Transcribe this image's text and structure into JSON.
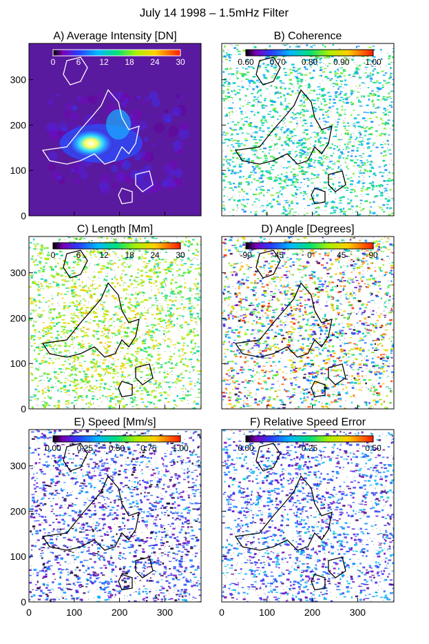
{
  "figure": {
    "title": "July 14 1998 – 1.5mHz Filter"
  },
  "chart_data": [
    {
      "type": "heatmap",
      "title": "A) Average Intensity [DN]",
      "colorbar": {
        "colormap": "rainbow",
        "ticks": [
          "0",
          "6",
          "12",
          "18",
          "24",
          "30"
        ],
        "range": [
          0,
          30
        ],
        "placement": "top"
      },
      "background": "#5a1aa0",
      "x_ticks": [],
      "y_ticks": [
        "0",
        "100",
        "200",
        "300"
      ],
      "xlim": [
        0,
        380
      ],
      "ylim": [
        0,
        380
      ]
    },
    {
      "type": "heatmap",
      "title": "B) Coherence",
      "colorbar": {
        "colormap": "rainbow",
        "ticks": [
          "0.60",
          "0.70",
          "0.80",
          "0.90",
          "1.00"
        ],
        "range": [
          0.6,
          1.0
        ],
        "placement": "top"
      },
      "background": "#ffffff",
      "x_ticks": [],
      "y_ticks": [],
      "xlim": [
        0,
        380
      ],
      "ylim": [
        0,
        380
      ]
    },
    {
      "type": "heatmap",
      "title": "C) Length [Mm]",
      "colorbar": {
        "colormap": "rainbow",
        "ticks": [
          "0",
          "6",
          "12",
          "18",
          "24",
          "30"
        ],
        "range": [
          0,
          30
        ],
        "placement": "top"
      },
      "background": "#ffffff",
      "x_ticks": [],
      "y_ticks": [
        "0",
        "100",
        "200",
        "300"
      ],
      "xlim": [
        0,
        380
      ],
      "ylim": [
        0,
        380
      ]
    },
    {
      "type": "heatmap",
      "title": "D) Angle [Degrees]",
      "colorbar": {
        "colormap": "rainbow",
        "ticks": [
          "-90",
          "-45",
          "0",
          "45",
          "90"
        ],
        "range": [
          -90,
          90
        ],
        "placement": "top"
      },
      "background": "#ffffff",
      "x_ticks": [],
      "y_ticks": [],
      "xlim": [
        0,
        380
      ],
      "ylim": [
        0,
        380
      ]
    },
    {
      "type": "heatmap",
      "title": "E) Speed [Mm/s]",
      "colorbar": {
        "colormap": "rainbow",
        "ticks": [
          "0.00",
          "0.25",
          "0.50",
          "0.75",
          "1.00"
        ],
        "range": [
          0,
          1
        ],
        "placement": "top"
      },
      "background": "#ffffff",
      "x_ticks": [
        "0",
        "100",
        "200",
        "300"
      ],
      "y_ticks": [
        "0",
        "100",
        "200",
        "300"
      ],
      "xlim": [
        0,
        380
      ],
      "ylim": [
        0,
        380
      ]
    },
    {
      "type": "heatmap",
      "title": "F) Relative Speed Error",
      "colorbar": {
        "colormap": "rainbow",
        "ticks": [
          "0.00",
          "0.25",
          "0.50"
        ],
        "range": [
          0,
          0.5
        ],
        "placement": "top"
      },
      "background": "#ffffff",
      "x_ticks": [
        "0",
        "100",
        "200",
        "300"
      ],
      "y_ticks": [],
      "xlim": [
        0,
        380
      ],
      "ylim": [
        0,
        380
      ]
    }
  ]
}
